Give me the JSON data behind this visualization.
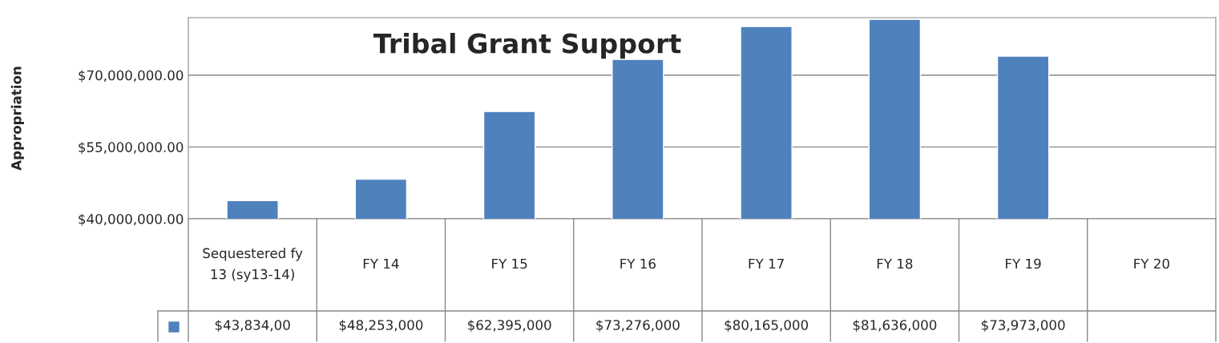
{
  "chart_data": {
    "type": "bar",
    "title": "Tribal Grant Support",
    "ylabel": "Appropriation",
    "categories": [
      "Sequestered fy 13 (sy13-14)",
      "FY 14",
      "FY 15",
      "FY 16",
      "FY 17",
      "FY 18",
      "FY 19",
      "FY 20"
    ],
    "values": [
      43800000,
      48253000,
      62395000,
      73276000,
      80165000,
      81636000,
      73973000,
      null
    ],
    "value_labels": [
      "$43,834,00",
      "$48,253,000",
      "$62,395,000",
      "$73,276,000",
      "$80,165,000",
      "$81,636,000",
      "$73,973,000",
      null
    ],
    "color": "#4f81bd",
    "ylim": [
      40000000,
      82000000
    ],
    "yticks": [
      {
        "value": 40000000,
        "label": "$40,000,000.00"
      },
      {
        "value": 55000000,
        "label": "$55,000,000.00"
      },
      {
        "value": 70000000,
        "label": "$70,000,000.00"
      }
    ],
    "grid": "y"
  }
}
